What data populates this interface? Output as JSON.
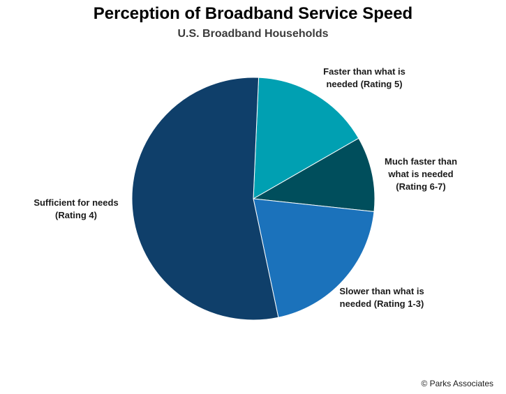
{
  "chart_data": {
    "type": "pie",
    "title": "Perception of Broadband Service Speed",
    "subtitle": "U.S. Broadband Households",
    "slices": [
      {
        "label_lines": [
          "Faster than what is",
          "needed (Rating 5)"
        ],
        "value": 16,
        "color": "#00a0b2"
      },
      {
        "label_lines": [
          "Much faster than",
          "what is needed",
          "(Rating 6-7)"
        ],
        "value": 10,
        "color": "#004e5c"
      },
      {
        "label_lines": [
          "Slower than what is",
          "needed (Rating 1-3)"
        ],
        "value": 20,
        "color": "#1b72bb"
      },
      {
        "label_lines": [
          "Sufficient for needs",
          "(Rating 4)"
        ],
        "value": 54,
        "color": "#0f3f6a"
      }
    ]
  },
  "footer": {
    "copyright": "© Parks Associates"
  }
}
